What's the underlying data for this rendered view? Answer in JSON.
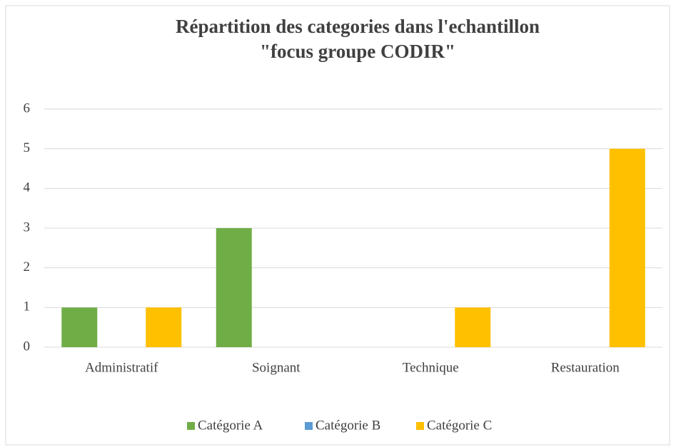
{
  "chart_data": {
    "type": "bar",
    "title": [
      "Répartition des categories dans l'echantillon",
      "\"focus groupe CODIR\""
    ],
    "categories": [
      "Administratif",
      "Soignant",
      "Technique",
      "Restauration"
    ],
    "series": [
      {
        "name": "Catégorie A",
        "color": "#70ad47",
        "values": [
          1,
          3,
          0,
          0
        ]
      },
      {
        "name": "Catégorie B",
        "color": "#5b9bd5",
        "values": [
          0,
          0,
          0,
          0
        ]
      },
      {
        "name": "Catégorie C",
        "color": "#ffc000",
        "values": [
          1,
          0,
          1,
          5
        ]
      }
    ],
    "ylim": [
      0,
      6
    ],
    "yticks": [
      0,
      1,
      2,
      3,
      4,
      5,
      6
    ],
    "grid": true,
    "legend": "bottom"
  }
}
